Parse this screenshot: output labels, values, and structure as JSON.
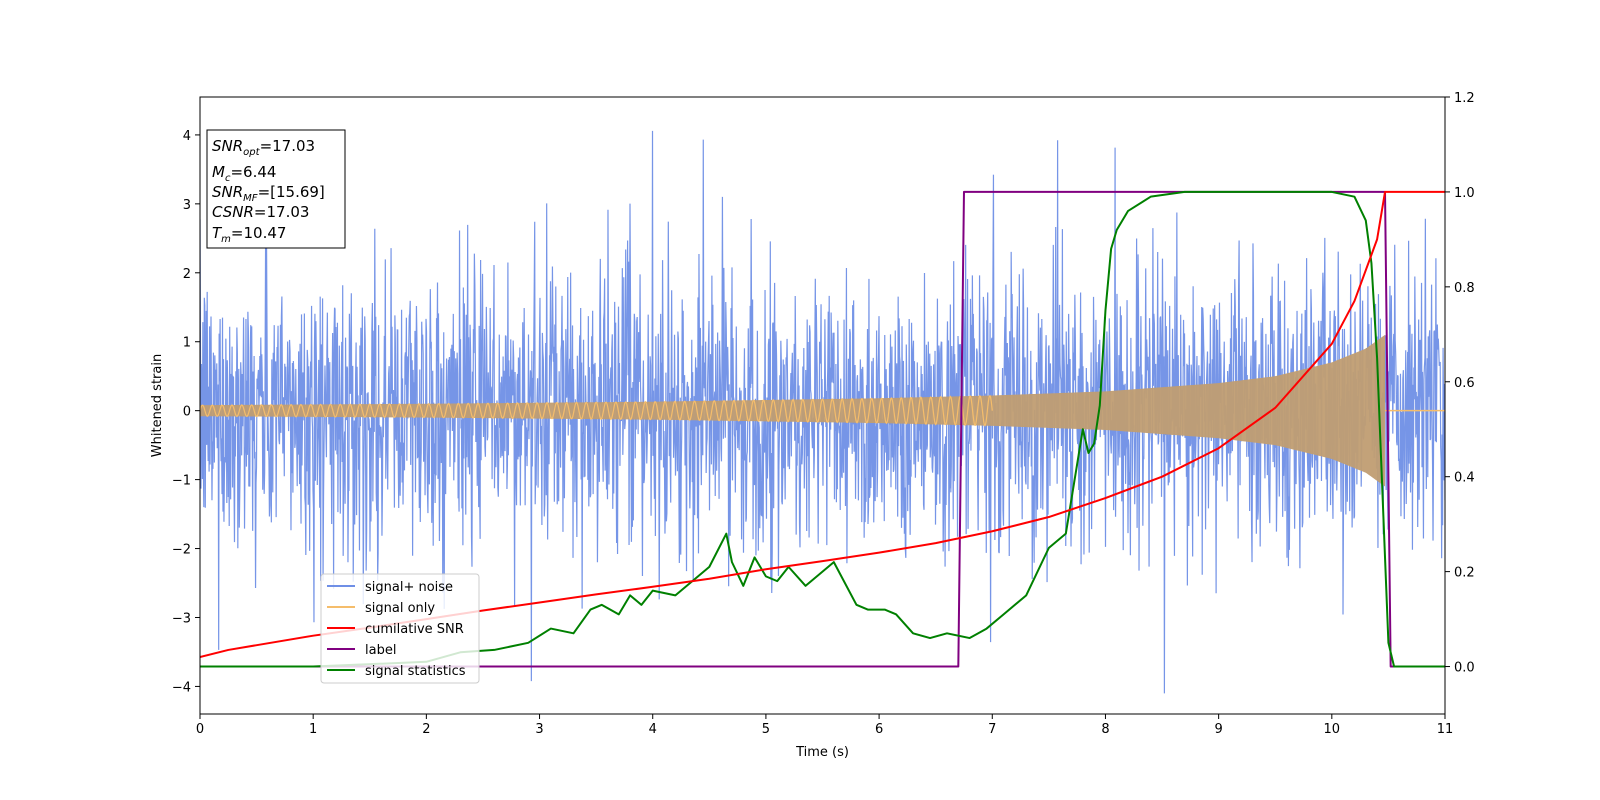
{
  "chart_data": {
    "type": "line",
    "xlabel": "Time (s)",
    "ylabel": "Whitened strain",
    "xlim": [
      0,
      11
    ],
    "ylim_left": [
      -4.4,
      4.55
    ],
    "ylim_right": [
      -0.1,
      1.2
    ],
    "x_ticks": [
      "0",
      "1",
      "2",
      "3",
      "4",
      "5",
      "6",
      "7",
      "8",
      "9",
      "10",
      "11"
    ],
    "y_ticks_left": [
      "−4",
      "−3",
      "−2",
      "−1",
      "0",
      "1",
      "2",
      "3",
      "4"
    ],
    "y_ticks_right": [
      "0.0",
      "0.2",
      "0.4",
      "0.6",
      "0.8",
      "1.0",
      "1.2"
    ],
    "info_box": {
      "lines": [
        {
          "sym": "SNR",
          "sub": "opt",
          "value": "=17.03"
        },
        {
          "sym": "M",
          "sub": "c",
          "value": "=6.44"
        },
        {
          "sym": "SNR",
          "sub": "MF",
          "value": "=[15.69]"
        },
        {
          "sym": "CSNR",
          "sub": "",
          "value": "=17.03"
        },
        {
          "sym": "T",
          "sub": "m",
          "value": "=10.47"
        }
      ]
    },
    "legend": {
      "placement": "lower-left",
      "entries": [
        {
          "label": "signal+ noise",
          "color": "#6f8fe6"
        },
        {
          "label": "signal only",
          "color": "#f5bd6b"
        },
        {
          "label": "cumilative SNR",
          "color": "#ff0000"
        },
        {
          "label": "label",
          "color": "#800080"
        },
        {
          "label": "signal statistics",
          "color": "#008000"
        }
      ]
    },
    "series": [
      {
        "name": "signal+ noise",
        "axis": "left",
        "color": "#6f8fe6",
        "description": "white noise, std ~1, spiky to ~±4, spanning 0–11 s",
        "noise_std": 1.0,
        "x_range": [
          0,
          11
        ]
      },
      {
        "name": "signal only",
        "axis": "left",
        "color": "#f5bd6b",
        "description": "chirp whose amplitude grows from ~0.08 at t=0 to ~1.1 at t=10.47, then zero",
        "amplitude_points": [
          [
            0,
            0.08
          ],
          [
            2,
            0.1
          ],
          [
            4,
            0.13
          ],
          [
            6,
            0.18
          ],
          [
            7,
            0.22
          ],
          [
            8,
            0.28
          ],
          [
            9,
            0.4
          ],
          [
            9.5,
            0.5
          ],
          [
            10,
            0.7
          ],
          [
            10.3,
            0.9
          ],
          [
            10.47,
            1.1
          ]
        ],
        "merger_time": 10.47
      },
      {
        "name": "cumilative SNR",
        "axis": "right",
        "color": "#ff0000",
        "x": [
          0,
          0.25,
          0.5,
          1,
          1.5,
          2,
          2.5,
          3,
          3.5,
          4,
          4.5,
          5,
          5.5,
          6,
          6.5,
          7,
          7.5,
          8,
          8.5,
          9,
          9.5,
          10,
          10.2,
          10.4,
          10.47,
          11
        ],
        "y": [
          0.02,
          0.035,
          0.045,
          0.065,
          0.082,
          0.1,
          0.118,
          0.135,
          0.152,
          0.168,
          0.185,
          0.205,
          0.222,
          0.24,
          0.26,
          0.285,
          0.315,
          0.355,
          0.4,
          0.46,
          0.545,
          0.68,
          0.77,
          0.9,
          1.0,
          1.0
        ]
      },
      {
        "name": "label",
        "axis": "right",
        "color": "#800080",
        "x": [
          0,
          6.7,
          6.75,
          10.47,
          10.52,
          11
        ],
        "y": [
          0,
          0,
          1,
          1,
          0,
          0
        ]
      },
      {
        "name": "signal statistics",
        "axis": "right",
        "color": "#008000",
        "x": [
          0,
          1,
          2,
          2.3,
          2.6,
          2.9,
          3.1,
          3.3,
          3.45,
          3.55,
          3.7,
          3.8,
          3.9,
          4.0,
          4.2,
          4.35,
          4.5,
          4.65,
          4.7,
          4.8,
          4.9,
          5.0,
          5.1,
          5.2,
          5.35,
          5.5,
          5.6,
          5.8,
          5.9,
          6.05,
          6.15,
          6.3,
          6.45,
          6.6,
          6.8,
          6.95,
          7.1,
          7.3,
          7.5,
          7.65,
          7.8,
          7.85,
          7.9,
          7.95,
          8.0,
          8.05,
          8.1,
          8.2,
          8.4,
          8.7,
          9.0,
          9.5,
          10.0,
          10.2,
          10.3,
          10.35,
          10.4,
          10.45,
          10.5,
          10.55,
          10.7,
          11
        ],
        "y": [
          0.0,
          0.0,
          0.01,
          0.03,
          0.035,
          0.05,
          0.08,
          0.07,
          0.12,
          0.13,
          0.11,
          0.15,
          0.13,
          0.16,
          0.15,
          0.18,
          0.21,
          0.28,
          0.22,
          0.17,
          0.23,
          0.19,
          0.18,
          0.21,
          0.17,
          0.2,
          0.22,
          0.13,
          0.12,
          0.12,
          0.11,
          0.07,
          0.06,
          0.07,
          0.06,
          0.08,
          0.11,
          0.15,
          0.25,
          0.28,
          0.5,
          0.45,
          0.47,
          0.55,
          0.75,
          0.88,
          0.92,
          0.96,
          0.99,
          1.0,
          1.0,
          1.0,
          1.0,
          0.99,
          0.94,
          0.85,
          0.65,
          0.35,
          0.05,
          0.0,
          0.0,
          0.0
        ]
      }
    ]
  }
}
